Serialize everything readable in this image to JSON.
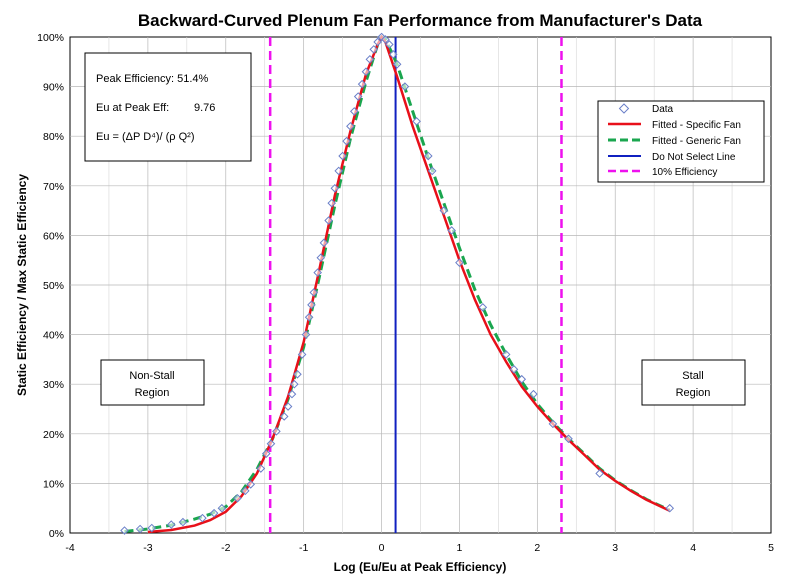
{
  "chart_data": {
    "type": "scatter",
    "title": "Backward-Curved Plenum Fan Performance from Manufacturer's Data",
    "xlabel": "Log (Eu/Eu at Peak Efficiency)",
    "ylabel": "Static Efficiency / Max Static Efficiency",
    "xlim": [
      -4,
      5
    ],
    "ylim": [
      0,
      100
    ],
    "x_ticks": [
      "-4",
      "-3",
      "-2",
      "-1",
      "0",
      "1",
      "2",
      "3",
      "4",
      "5"
    ],
    "y_ticks": [
      "0%",
      "10%",
      "20%",
      "30%",
      "40%",
      "50%",
      "60%",
      "70%",
      "80%",
      "90%",
      "100%"
    ],
    "grid": true,
    "legend_position": "right",
    "legend": {
      "data": "Data",
      "fitted_specific": "Fitted - Specific Fan",
      "fitted_generic": "Fitted - Generic Fan",
      "do_not_select": "Do Not Select Line",
      "ten_percent": "10% Efficiency"
    },
    "colors": {
      "data": "#6a7fc8",
      "fitted_specific": "#e8101a",
      "fitted_generic": "#1aa64f",
      "do_not_select": "#1020c0",
      "ten_percent": "#ee11ee"
    },
    "info_box": {
      "peak_efficiency": "Peak Efficiency: 51.4%",
      "eu_label": "Eu at Peak Eff:",
      "eu_value": "9.76",
      "formula": "Eu = (ΔP D⁴)/ (ρ Q²)"
    },
    "regions": {
      "non_stall_line1": "Non-Stall",
      "non_stall_line2": "Region",
      "stall_line1": "Stall",
      "stall_line2": "Region"
    },
    "vertical_lines": {
      "ten_percent_left_x": -1.43,
      "ten_percent_right_x": 2.31,
      "do_not_select_x": 0.18
    },
    "series": [
      {
        "name": "Data",
        "points": [
          [
            -3.3,
            0.5
          ],
          [
            -3.1,
            0.8
          ],
          [
            -2.95,
            1.0
          ],
          [
            -2.7,
            1.7
          ],
          [
            -2.55,
            2.2
          ],
          [
            -2.3,
            3.0
          ],
          [
            -2.15,
            4.0
          ],
          [
            -2.05,
            5.0
          ],
          [
            -1.85,
            7.0
          ],
          [
            -1.75,
            8.5
          ],
          [
            -1.68,
            9.8
          ],
          [
            -1.55,
            13.0
          ],
          [
            -1.48,
            16.0
          ],
          [
            -1.42,
            18.0
          ],
          [
            -1.35,
            20.5
          ],
          [
            -1.25,
            23.5
          ],
          [
            -1.2,
            25.5
          ],
          [
            -1.15,
            28.0
          ],
          [
            -1.12,
            30.0
          ],
          [
            -1.08,
            32.0
          ],
          [
            -1.02,
            36.0
          ],
          [
            -0.97,
            40.0
          ],
          [
            -0.93,
            43.5
          ],
          [
            -0.9,
            46.0
          ],
          [
            -0.87,
            48.5
          ],
          [
            -0.82,
            52.5
          ],
          [
            -0.78,
            55.5
          ],
          [
            -0.74,
            58.5
          ],
          [
            -0.68,
            63.0
          ],
          [
            -0.64,
            66.5
          ],
          [
            -0.6,
            69.5
          ],
          [
            -0.55,
            73.0
          ],
          [
            -0.5,
            76.0
          ],
          [
            -0.45,
            79.0
          ],
          [
            -0.4,
            82.0
          ],
          [
            -0.35,
            85.0
          ],
          [
            -0.3,
            88.0
          ],
          [
            -0.25,
            90.5
          ],
          [
            -0.2,
            93.0
          ],
          [
            -0.15,
            95.5
          ],
          [
            -0.1,
            97.5
          ],
          [
            -0.05,
            99.0
          ],
          [
            0.0,
            100.0
          ],
          [
            0.05,
            99.5
          ],
          [
            0.1,
            98.5
          ],
          [
            0.15,
            96.5
          ],
          [
            0.2,
            94.5
          ],
          [
            0.3,
            90.0
          ],
          [
            0.45,
            83.0
          ],
          [
            0.6,
            76.0
          ],
          [
            0.65,
            73.0
          ],
          [
            0.8,
            65.0
          ],
          [
            0.9,
            61.0
          ],
          [
            1.0,
            54.5
          ],
          [
            1.3,
            45.5
          ],
          [
            1.6,
            36.0
          ],
          [
            1.7,
            33.0
          ],
          [
            1.8,
            31.0
          ],
          [
            1.95,
            28.0
          ],
          [
            2.2,
            22.0
          ],
          [
            2.4,
            19.0
          ],
          [
            2.8,
            12.0
          ],
          [
            3.7,
            5.0
          ]
        ]
      },
      {
        "name": "Fitted - Specific Fan",
        "points": [
          [
            -3.0,
            0.2
          ],
          [
            -2.7,
            0.6
          ],
          [
            -2.4,
            1.5
          ],
          [
            -2.2,
            2.6
          ],
          [
            -2.0,
            4.3
          ],
          [
            -1.8,
            7.4
          ],
          [
            -1.6,
            12.0
          ],
          [
            -1.4,
            19.0
          ],
          [
            -1.2,
            27.5
          ],
          [
            -1.0,
            38.5
          ],
          [
            -0.8,
            53.0
          ],
          [
            -0.6,
            68.0
          ],
          [
            -0.4,
            81.0
          ],
          [
            -0.2,
            92.5
          ],
          [
            -0.05,
            98.5
          ],
          [
            0.0,
            100.0
          ],
          [
            0.05,
            99.0
          ],
          [
            0.2,
            92.0
          ],
          [
            0.4,
            82.0
          ],
          [
            0.6,
            73.0
          ],
          [
            0.8,
            64.0
          ],
          [
            1.0,
            55.0
          ],
          [
            1.2,
            47.0
          ],
          [
            1.4,
            40.0
          ],
          [
            1.6,
            34.5
          ],
          [
            1.8,
            29.5
          ],
          [
            2.0,
            25.5
          ],
          [
            2.2,
            22.0
          ],
          [
            2.4,
            18.8
          ],
          [
            2.6,
            15.8
          ],
          [
            2.8,
            12.8
          ],
          [
            3.0,
            10.5
          ],
          [
            3.2,
            8.5
          ],
          [
            3.4,
            6.7
          ],
          [
            3.7,
            4.5
          ]
        ]
      },
      {
        "name": "Fitted - Generic Fan",
        "points": [
          [
            -3.3,
            0.3
          ],
          [
            -3.0,
            0.8
          ],
          [
            -2.7,
            1.6
          ],
          [
            -2.4,
            2.8
          ],
          [
            -2.2,
            3.8
          ],
          [
            -2.0,
            5.3
          ],
          [
            -1.8,
            8.3
          ],
          [
            -1.6,
            12.8
          ],
          [
            -1.4,
            19.0
          ],
          [
            -1.2,
            27.0
          ],
          [
            -1.0,
            37.5
          ],
          [
            -0.8,
            51.5
          ],
          [
            -0.6,
            66.0
          ],
          [
            -0.4,
            79.5
          ],
          [
            -0.2,
            91.0
          ],
          [
            -0.05,
            98.5
          ],
          [
            0.0,
            100.0
          ],
          [
            0.05,
            99.6
          ],
          [
            0.2,
            94.5
          ],
          [
            0.4,
            85.0
          ],
          [
            0.6,
            75.5
          ],
          [
            0.8,
            66.5
          ],
          [
            1.0,
            57.5
          ],
          [
            1.2,
            49.0
          ],
          [
            1.4,
            42.0
          ],
          [
            1.6,
            36.0
          ],
          [
            1.8,
            30.5
          ],
          [
            2.0,
            26.0
          ],
          [
            2.2,
            22.3
          ],
          [
            2.4,
            19.0
          ],
          [
            2.6,
            16.0
          ],
          [
            2.8,
            13.0
          ],
          [
            3.0,
            10.6
          ],
          [
            3.2,
            8.6
          ],
          [
            3.4,
            6.8
          ],
          [
            3.7,
            4.6
          ]
        ]
      }
    ]
  }
}
